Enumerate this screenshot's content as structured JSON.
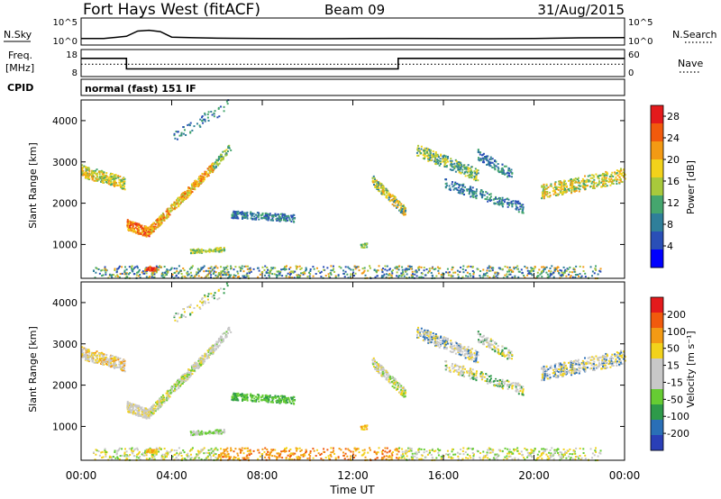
{
  "header": {
    "station": "Fort Hays West (fitACF)",
    "beam": "Beam 09",
    "date": "31/Aug/2015"
  },
  "colors": {
    "axis": "#000000",
    "background": "#ffffff",
    "power_scale": [
      "#0000ff",
      "#2a4fb7",
      "#2f7f9a",
      "#45a66e",
      "#a8c93c",
      "#f2d21b",
      "#f39a14",
      "#f15a0d",
      "#e41a1c"
    ],
    "velocity_scale": [
      "#e41a1c",
      "#f15a0d",
      "#f39a14",
      "#f2d21b",
      "#c8c8c8",
      "#c8c8c8",
      "#66cc33",
      "#2e9a4a",
      "#2a6fb7",
      "#2a3fb7"
    ]
  },
  "chart_data": [
    {
      "type": "line",
      "panel": "noise",
      "left_label": "N.Sky",
      "right_label": "N.Search",
      "left_ticks": [
        "10^5",
        "10^0"
      ],
      "right_ticks": [
        "10^5",
        "10^0"
      ],
      "x": [
        "00:00",
        "01:00",
        "02:00",
        "02:30",
        "03:00",
        "03:30",
        "04:00",
        "05:00",
        "06:00",
        "08:00",
        "10:00",
        "12:00",
        "14:00",
        "16:00",
        "18:00",
        "20:00",
        "22:00",
        "24:00"
      ],
      "series": [
        {
          "values": [
            10,
            10,
            30,
            400,
            600,
            300,
            20,
            15,
            12,
            10,
            9,
            10,
            11,
            10,
            9,
            10,
            14,
            16
          ]
        }
      ]
    },
    {
      "type": "line",
      "panel": "frequency",
      "left_label": "Freq. [MHz]",
      "right_label": "Nave",
      "left_ticks": [
        "18",
        "8"
      ],
      "right_ticks": [
        "60",
        "0"
      ],
      "ylim_left": [
        8,
        18
      ],
      "ylim_right": [
        0,
        60
      ],
      "x": [
        "00:00",
        "02:00",
        "02:00",
        "14:00",
        "14:00",
        "24:00"
      ],
      "series": [
        {
          "values": [
            15,
            15,
            10.5,
            10.5,
            15,
            15
          ]
        },
        {
          "values": [
            27,
            27,
            27,
            27,
            27,
            27
          ]
        }
      ]
    },
    {
      "type": "heatmap",
      "panel": "power",
      "cpid_label": "CPID",
      "cpid_text": "normal (fast) 151 IF",
      "ylabel": "Slant Range [km]",
      "yticks": [
        "1000",
        "2000",
        "3000",
        "4000"
      ],
      "ylim": [
        180,
        4500
      ],
      "xlim": [
        0,
        24
      ],
      "colorbar_label": "Power [dB]",
      "colorbar_ticks": [
        "4",
        "8",
        "12",
        "16",
        "20",
        "24",
        "28"
      ],
      "colorbar_range": [
        0,
        30
      ]
    },
    {
      "type": "heatmap",
      "panel": "velocity",
      "ylabel": "Slant Range [km]",
      "yticks": [
        "1000",
        "2000",
        "3000",
        "4000"
      ],
      "ylim": [
        180,
        4500
      ],
      "xlim": [
        0,
        24
      ],
      "xticks": [
        "00:00",
        "04:00",
        "08:00",
        "12:00",
        "16:00",
        "20:00",
        "00:00"
      ],
      "xlabel": "Time UT",
      "colorbar_label": "Velocity [m s⁻¹]",
      "colorbar_ticks": [
        "200",
        "100",
        "50",
        "15",
        "-15",
        "-50",
        "-100",
        "-200"
      ]
    }
  ]
}
